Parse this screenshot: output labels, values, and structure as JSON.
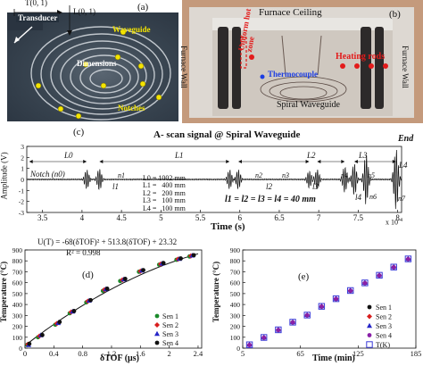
{
  "panel_a": {
    "tag": "(a)",
    "t_label": "T(0, 1)",
    "l_label": "L(0, 1)",
    "transducer": "Transducer",
    "waveguide": "Waveguide",
    "dimensions": "Dimensions",
    "notches": "Notches"
  },
  "panel_b": {
    "tag": "(b)",
    "ceiling": "Furnace Ceiling",
    "wall_left": "Furnace  Wall",
    "wall_right": "Furnace  Wall",
    "uniform_zone": "Uniform hot zone",
    "heating_rods": "Heating rods",
    "thermocouple": "Thermocouple",
    "spiral_waveguide": "Spiral Waveguide"
  },
  "panel_c": {
    "tag": "(c)",
    "title": "A- scan signal @ Spiral Waveguide",
    "ylabel": "Amplitude (V)",
    "xlabel": "Time (s)",
    "x_exponent": "x 10",
    "x_exponent_power": "-4",
    "end_label": "End",
    "notch_label": "Notch (n0)",
    "segment_labels": [
      "L0",
      "L1",
      "L2",
      "L3",
      "L4"
    ],
    "notch_labels": [
      "n1",
      "n2",
      "n3",
      "n4",
      "n5",
      "n6",
      "n7"
    ],
    "ell_labels": [
      "l1",
      "l2",
      "l3",
      "l4"
    ],
    "lengths": [
      "L0 = 1002 mm",
      "L1 =   400 mm",
      "L2 =   200 mm",
      "L3 =   100 mm",
      "L4 =   100 mm"
    ],
    "equal_note": "l1 = l2 = l3 = l4 = 40 mm"
  },
  "panel_d": {
    "tag": "(d)",
    "equation": "U(T) = -68(δTOF)² + 513.8(δTOF) + 23.32",
    "r2": "R² = 0.998",
    "ylabel": "Temperature (°C)",
    "xlabel": "δTOF (μs)"
  },
  "panel_e": {
    "tag": "(e)",
    "ylabel": "Temperature (°C)",
    "xlabel": "Time (min)"
  },
  "chart_data": [
    {
      "type": "line",
      "id": "c",
      "title": "A- scan signal @ Spiral Waveguide",
      "xlabel": "Time (s)",
      "ylabel": "Amplitude (V)",
      "xlim": [
        3.3,
        8.05
      ],
      "ylim": [
        -3,
        3
      ],
      "x_ticks": [
        3.5,
        4,
        4.5,
        5,
        5.5,
        6,
        6.5,
        7,
        7.5,
        8
      ],
      "y_ticks": [
        -3,
        -2,
        -1,
        0,
        1,
        2,
        3
      ],
      "x_scale_note": "x 10^-4",
      "echo_times": [
        4.06,
        4.22,
        5.87,
        5.98,
        6.88,
        6.98,
        7.33,
        7.45,
        7.6,
        7.98
      ],
      "echo_amplitudes": [
        0.9,
        1.0,
        0.9,
        0.9,
        0.8,
        0.9,
        1.2,
        1.5,
        2.3,
        2.8
      ]
    },
    {
      "type": "scatter",
      "id": "d",
      "xlabel": "δTOF (μs)",
      "ylabel": "Temperature (°C)",
      "xlim": [
        0,
        2.45
      ],
      "ylim": [
        0,
        900
      ],
      "x_ticks": [
        0,
        0.4,
        0.8,
        1.2,
        1.6,
        2,
        2.4
      ],
      "y_ticks": [
        0,
        100,
        200,
        300,
        400,
        500,
        600,
        700,
        800,
        900
      ],
      "fit": {
        "a": -68,
        "b": 513.8,
        "c": 23.32
      },
      "series": [
        {
          "name": "Sen 1",
          "color": "#1a8a2a",
          "marker": "circle",
          "x": [
            0.03,
            0.18,
            0.42,
            0.62,
            0.85,
            1.08,
            1.32,
            1.58,
            1.86,
            2.1,
            2.28
          ],
          "y": [
            30,
            100,
            215,
            320,
            420,
            525,
            615,
            700,
            765,
            810,
            840
          ]
        },
        {
          "name": "Sen 2",
          "color": "#d81e1e",
          "marker": "diamond",
          "x": [
            0.04,
            0.2,
            0.44,
            0.64,
            0.87,
            1.1,
            1.35,
            1.6,
            1.88,
            2.12,
            2.3
          ],
          "y": [
            35,
            110,
            225,
            330,
            430,
            535,
            625,
            705,
            770,
            815,
            845
          ]
        },
        {
          "name": "Sen 3",
          "color": "#2626c8",
          "marker": "triangle",
          "x": [
            0.05,
            0.22,
            0.46,
            0.66,
            0.89,
            1.12,
            1.37,
            1.62,
            1.9,
            2.14,
            2.32
          ],
          "y": [
            28,
            118,
            230,
            335,
            435,
            540,
            630,
            710,
            775,
            818,
            848
          ]
        },
        {
          "name": "Sen 4",
          "color": "#111111",
          "marker": "circle",
          "x": [
            0.06,
            0.24,
            0.48,
            0.68,
            0.91,
            1.14,
            1.39,
            1.64,
            1.92,
            2.16,
            2.34
          ],
          "y": [
            40,
            120,
            240,
            340,
            440,
            545,
            635,
            715,
            780,
            822,
            852
          ]
        }
      ]
    },
    {
      "type": "scatter",
      "id": "e",
      "xlabel": "Time (min)",
      "ylabel": "Temperature (°C)",
      "xlim": [
        5,
        185
      ],
      "ylim": [
        0,
        900
      ],
      "x_ticks": [
        5,
        65,
        125,
        185
      ],
      "x_tick_labels": [
        "5",
        "65",
        "125",
        "185"
      ],
      "y_ticks": [
        0,
        100,
        200,
        300,
        400,
        500,
        600,
        700,
        800,
        900
      ],
      "x": [
        12,
        27,
        42,
        57,
        72,
        87,
        102,
        117,
        132,
        147,
        162,
        177
      ],
      "series": [
        {
          "name": "Sen 1",
          "color": "#111111",
          "marker": "circle",
          "y": [
            28,
            95,
            165,
            235,
            300,
            380,
            450,
            525,
            595,
            665,
            740,
            815
          ]
        },
        {
          "name": "Sen 2",
          "color": "#d81e1e",
          "marker": "diamond",
          "y": [
            30,
            97,
            167,
            237,
            302,
            382,
            452,
            527,
            597,
            667,
            742,
            817
          ]
        },
        {
          "name": "Sen 3",
          "color": "#2626c8",
          "marker": "triangle",
          "y": [
            32,
            99,
            169,
            239,
            304,
            384,
            454,
            529,
            599,
            669,
            744,
            819
          ]
        },
        {
          "name": "Sen 4",
          "color": "#8a1fa8",
          "marker": "circle",
          "y": [
            29,
            96,
            166,
            236,
            301,
            381,
            451,
            526,
            596,
            666,
            741,
            816
          ]
        },
        {
          "name": "T(K)",
          "color": "#3a3ad8",
          "marker": "square-open",
          "y": [
            31,
            98,
            168,
            238,
            303,
            383,
            453,
            528,
            598,
            668,
            743,
            818
          ]
        }
      ]
    }
  ]
}
